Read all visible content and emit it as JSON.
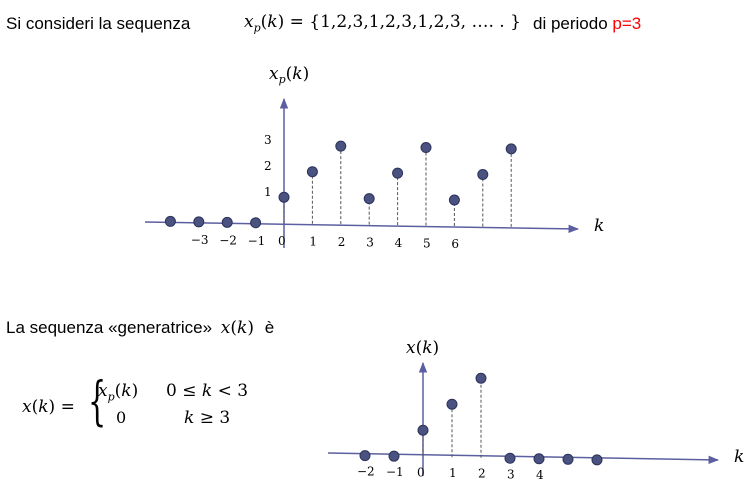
{
  "header": {
    "intro": "Si consideri la sequenza",
    "sequence_formula": "x_p(k) = {1,2,3,1,2,3,1,2,3, …. . }",
    "period_prefix": "di periodo ",
    "period_value": "p=3"
  },
  "middle": {
    "generator_text": "La sequenza «generatrice»",
    "generator_symbol": "x(k)",
    "generator_suffix": "è"
  },
  "definition": {
    "lhs": "x(k) =",
    "case1_expr": "x_p(k)",
    "case1_cond": "0 ≤ k < 3",
    "case2_expr": "0",
    "case2_cond": "k ≥ 3"
  },
  "chart_data": [
    {
      "type": "stem",
      "ylabel": "x_p(k)",
      "xlabel": "k",
      "x_ticks": [
        "−3",
        "−2",
        "−1",
        "0",
        "1",
        "2",
        "3",
        "4",
        "5",
        "6"
      ],
      "y_ticks": [
        "1",
        "2",
        "3"
      ],
      "points": [
        {
          "x": -4,
          "y": 0
        },
        {
          "x": -3,
          "y": 0
        },
        {
          "x": -2,
          "y": 0
        },
        {
          "x": -1,
          "y": 0
        },
        {
          "x": 0,
          "y": 1
        },
        {
          "x": 1,
          "y": 2
        },
        {
          "x": 2,
          "y": 3
        },
        {
          "x": 3,
          "y": 1
        },
        {
          "x": 4,
          "y": 2
        },
        {
          "x": 5,
          "y": 3
        },
        {
          "x": 6,
          "y": 1
        },
        {
          "x": 7,
          "y": 2
        },
        {
          "x": 8,
          "y": 3
        }
      ]
    },
    {
      "type": "stem",
      "ylabel": "x(k)",
      "xlabel": "k",
      "x_ticks": [
        "−2",
        "−1",
        "0",
        "1",
        "2",
        "3",
        "4"
      ],
      "points": [
        {
          "x": -2,
          "y": 0
        },
        {
          "x": -1,
          "y": 0
        },
        {
          "x": 0,
          "y": 1
        },
        {
          "x": 1,
          "y": 2
        },
        {
          "x": 2,
          "y": 3
        },
        {
          "x": 3,
          "y": 0
        },
        {
          "x": 4,
          "y": 0
        },
        {
          "x": 5,
          "y": 0
        },
        {
          "x": 6,
          "y": 0
        }
      ]
    }
  ]
}
